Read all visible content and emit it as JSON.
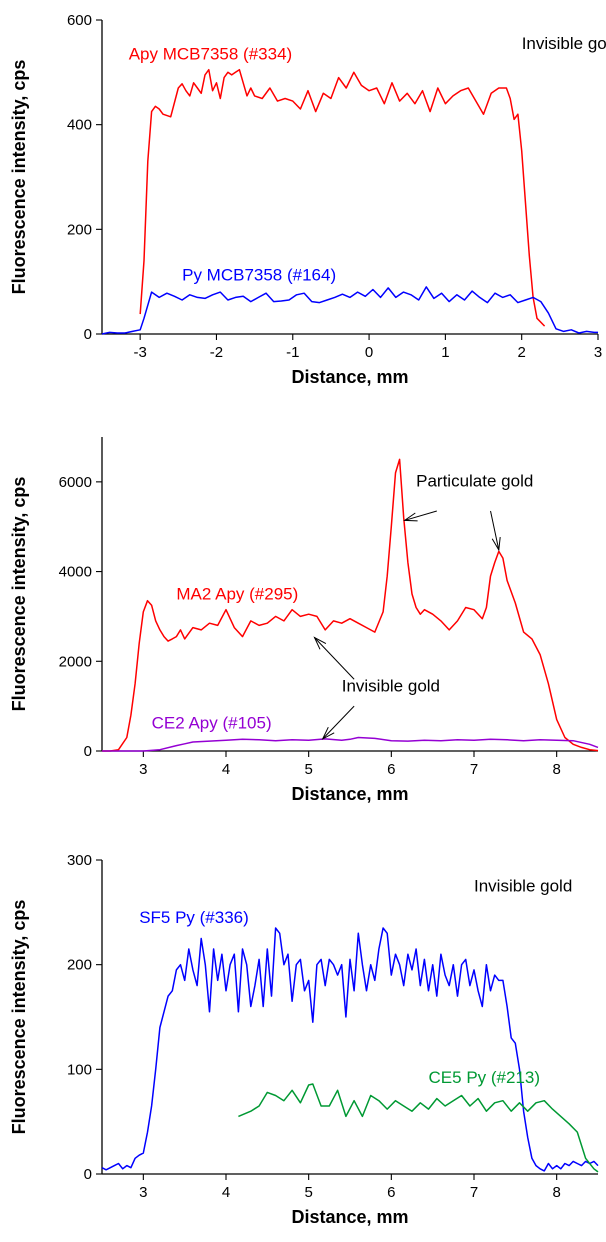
{
  "chart_data": [
    {
      "type": "line",
      "xlabel": "Distance, mm",
      "ylabel": "Fluorescence intensity, cps",
      "xlim": [
        -3.5,
        3
      ],
      "ylim": [
        0,
        600
      ],
      "xticks": [
        -3,
        -2,
        -1,
        0,
        1,
        2,
        3
      ],
      "yticks": [
        0,
        200,
        400,
        600
      ],
      "grid": false,
      "annotations": [
        {
          "text": "Invisible gold",
          "x": 2.0,
          "y": 545,
          "color": "#000000",
          "anchor": "start"
        }
      ],
      "series": [
        {
          "name": "Apy MCB7358 (#334)",
          "color": "#ff0000",
          "label_pos": {
            "x": -3.15,
            "y": 525
          },
          "x": [
            -3.0,
            -2.95,
            -2.9,
            -2.85,
            -2.8,
            -2.75,
            -2.7,
            -2.6,
            -2.5,
            -2.45,
            -2.4,
            -2.35,
            -2.3,
            -2.25,
            -2.2,
            -2.15,
            -2.1,
            -2.05,
            -2.0,
            -1.95,
            -1.9,
            -1.85,
            -1.8,
            -1.75,
            -1.7,
            -1.65,
            -1.6,
            -1.55,
            -1.5,
            -1.4,
            -1.3,
            -1.2,
            -1.1,
            -1.0,
            -0.9,
            -0.8,
            -0.7,
            -0.6,
            -0.5,
            -0.4,
            -0.3,
            -0.2,
            -0.1,
            0.0,
            0.1,
            0.2,
            0.3,
            0.4,
            0.5,
            0.6,
            0.7,
            0.8,
            0.9,
            1.0,
            1.1,
            1.2,
            1.3,
            1.4,
            1.5,
            1.6,
            1.7,
            1.8,
            1.85,
            1.9,
            1.95,
            2.0,
            2.05,
            2.1,
            2.15,
            2.2,
            2.3
          ],
          "y": [
            38,
            140,
            330,
            425,
            435,
            430,
            420,
            415,
            470,
            478,
            465,
            455,
            480,
            470,
            460,
            495,
            505,
            465,
            480,
            450,
            490,
            500,
            495,
            500,
            505,
            480,
            455,
            470,
            455,
            450,
            470,
            445,
            450,
            445,
            430,
            465,
            425,
            460,
            450,
            490,
            470,
            500,
            475,
            465,
            470,
            440,
            480,
            445,
            460,
            440,
            465,
            425,
            470,
            440,
            455,
            465,
            470,
            445,
            420,
            460,
            470,
            470,
            450,
            410,
            420,
            350,
            250,
            150,
            70,
            30,
            15
          ]
        },
        {
          "name": "Py MCB7358 (#164)",
          "color": "#0000ff",
          "label_pos": {
            "x": -2.45,
            "y": 102
          },
          "x": [
            -3.5,
            -3.4,
            -3.3,
            -3.2,
            -3.1,
            -3.0,
            -2.95,
            -2.85,
            -2.75,
            -2.65,
            -2.55,
            -2.45,
            -2.35,
            -2.25,
            -2.15,
            -2.05,
            -1.95,
            -1.85,
            -1.75,
            -1.65,
            -1.55,
            -1.45,
            -1.35,
            -1.25,
            -1.15,
            -1.05,
            -0.95,
            -0.85,
            -0.75,
            -0.65,
            -0.55,
            -0.45,
            -0.35,
            -0.25,
            -0.15,
            -0.05,
            0.05,
            0.15,
            0.25,
            0.35,
            0.45,
            0.55,
            0.65,
            0.75,
            0.85,
            0.95,
            1.05,
            1.15,
            1.25,
            1.35,
            1.45,
            1.55,
            1.65,
            1.75,
            1.85,
            1.95,
            2.05,
            2.15,
            2.25,
            2.35,
            2.45,
            2.55,
            2.65,
            2.75,
            2.85,
            2.95,
            3.0
          ],
          "y": [
            0,
            3,
            2,
            2,
            5,
            8,
            30,
            80,
            70,
            78,
            72,
            65,
            75,
            70,
            68,
            75,
            80,
            65,
            70,
            72,
            62,
            70,
            78,
            62,
            63,
            65,
            75,
            78,
            62,
            60,
            65,
            70,
            76,
            70,
            80,
            72,
            85,
            70,
            88,
            70,
            80,
            75,
            65,
            90,
            68,
            78,
            62,
            75,
            65,
            82,
            70,
            60,
            78,
            70,
            75,
            60,
            65,
            70,
            62,
            40,
            10,
            5,
            8,
            2,
            5,
            3,
            3
          ]
        }
      ]
    },
    {
      "type": "line",
      "xlabel": "Distance, mm",
      "ylabel": "Fluorescence intensity, cps",
      "xlim": [
        2.5,
        8.5
      ],
      "ylim": [
        0,
        7000
      ],
      "xticks": [
        3,
        4,
        5,
        6,
        7,
        8
      ],
      "yticks": [
        0,
        2000,
        4000,
        6000
      ],
      "grid": false,
      "annotations": [
        {
          "text": "Particulate gold",
          "x": 6.3,
          "y": 5900,
          "color": "#000000",
          "anchor": "start"
        },
        {
          "text": "Invisible gold",
          "x": 5.4,
          "y": 1330,
          "color": "#000000",
          "anchor": "start"
        }
      ],
      "arrows": [
        {
          "from": [
            6.55,
            5350
          ],
          "to": [
            6.16,
            5140
          ]
        },
        {
          "from": [
            7.2,
            5350
          ],
          "to": [
            7.3,
            4480
          ]
        },
        {
          "from": [
            5.55,
            1600
          ],
          "to": [
            5.07,
            2530
          ]
        },
        {
          "from": [
            5.55,
            1000
          ],
          "to": [
            5.17,
            270
          ]
        }
      ],
      "series": [
        {
          "name": "MA2 Apy (#295)",
          "color": "#ff0000",
          "label_pos": {
            "x": 3.4,
            "y": 3380
          },
          "x": [
            2.5,
            2.6,
            2.7,
            2.8,
            2.85,
            2.9,
            2.95,
            3.0,
            3.05,
            3.1,
            3.15,
            3.2,
            3.25,
            3.3,
            3.35,
            3.4,
            3.45,
            3.5,
            3.6,
            3.7,
            3.8,
            3.9,
            4.0,
            4.1,
            4.2,
            4.3,
            4.4,
            4.5,
            4.6,
            4.7,
            4.8,
            4.9,
            5.0,
            5.1,
            5.2,
            5.3,
            5.4,
            5.5,
            5.6,
            5.7,
            5.8,
            5.9,
            5.95,
            6.0,
            6.05,
            6.1,
            6.15,
            6.2,
            6.25,
            6.3,
            6.35,
            6.4,
            6.5,
            6.6,
            6.7,
            6.8,
            6.9,
            7.0,
            7.1,
            7.15,
            7.2,
            7.25,
            7.3,
            7.35,
            7.4,
            7.5,
            7.6,
            7.7,
            7.8,
            7.9,
            8.0,
            8.1,
            8.2,
            8.3,
            8.4,
            8.5
          ],
          "y": [
            0,
            0,
            30,
            300,
            800,
            1500,
            2400,
            3100,
            3350,
            3250,
            2900,
            2700,
            2550,
            2450,
            2500,
            2550,
            2700,
            2500,
            2750,
            2700,
            2850,
            2800,
            3150,
            2750,
            2550,
            2900,
            2800,
            2850,
            3000,
            2900,
            3150,
            3000,
            3050,
            3000,
            2700,
            2900,
            2850,
            2950,
            2850,
            2750,
            2650,
            3100,
            3900,
            5000,
            6200,
            6500,
            5200,
            4200,
            3500,
            3200,
            3050,
            3150,
            3050,
            2900,
            2700,
            2900,
            3200,
            3150,
            2950,
            3200,
            3900,
            4200,
            4450,
            4300,
            3800,
            3300,
            2650,
            2500,
            2150,
            1500,
            700,
            300,
            150,
            80,
            30,
            10
          ]
        },
        {
          "name": "CE2 Apy (#105)",
          "color": "#9400d3",
          "label_pos": {
            "x": 3.1,
            "y": 500
          },
          "x": [
            2.5,
            3.0,
            3.2,
            3.4,
            3.5,
            3.6,
            3.8,
            4.0,
            4.2,
            4.4,
            4.6,
            4.8,
            5.0,
            5.2,
            5.4,
            5.5,
            5.6,
            5.8,
            6.0,
            6.2,
            6.4,
            6.6,
            6.8,
            7.0,
            7.2,
            7.4,
            7.6,
            7.8,
            8.0,
            8.2,
            8.4,
            8.5
          ],
          "y": [
            0,
            0,
            30,
            120,
            160,
            200,
            220,
            240,
            260,
            250,
            230,
            250,
            240,
            270,
            240,
            260,
            300,
            280,
            230,
            220,
            240,
            230,
            250,
            240,
            260,
            250,
            230,
            250,
            240,
            230,
            150,
            80
          ]
        }
      ]
    },
    {
      "type": "line",
      "xlabel": "Distance, mm",
      "ylabel": "Fluorescence intensity, cps",
      "xlim": [
        2.5,
        8.5
      ],
      "ylim": [
        0,
        300
      ],
      "xticks": [
        3,
        4,
        5,
        6,
        7,
        8
      ],
      "yticks": [
        0,
        100,
        200,
        300
      ],
      "grid": false,
      "annotations": [
        {
          "text": "Invisible gold",
          "x": 7.0,
          "y": 270,
          "color": "#000000",
          "anchor": "start"
        }
      ],
      "series": [
        {
          "name": "SF5 Py (#336)",
          "color": "#0000ff",
          "label_pos": {
            "x": 2.95,
            "y": 240
          },
          "x": [
            2.5,
            2.55,
            2.6,
            2.65,
            2.7,
            2.75,
            2.8,
            2.85,
            2.9,
            2.95,
            3.0,
            3.05,
            3.1,
            3.15,
            3.2,
            3.25,
            3.3,
            3.35,
            3.4,
            3.45,
            3.5,
            3.55,
            3.6,
            3.65,
            3.7,
            3.75,
            3.8,
            3.85,
            3.9,
            3.95,
            4.0,
            4.05,
            4.1,
            4.15,
            4.2,
            4.25,
            4.3,
            4.35,
            4.4,
            4.45,
            4.5,
            4.55,
            4.6,
            4.65,
            4.7,
            4.75,
            4.8,
            4.85,
            4.9,
            4.95,
            5.0,
            5.05,
            5.1,
            5.15,
            5.2,
            5.25,
            5.3,
            5.35,
            5.4,
            5.45,
            5.5,
            5.55,
            5.6,
            5.65,
            5.7,
            5.75,
            5.8,
            5.85,
            5.9,
            5.95,
            6.0,
            6.05,
            6.1,
            6.15,
            6.2,
            6.25,
            6.3,
            6.35,
            6.4,
            6.45,
            6.5,
            6.55,
            6.6,
            6.65,
            6.7,
            6.75,
            6.8,
            6.85,
            6.9,
            6.95,
            7.0,
            7.05,
            7.1,
            7.15,
            7.2,
            7.25,
            7.3,
            7.35,
            7.4,
            7.45,
            7.5,
            7.55,
            7.6,
            7.65,
            7.7,
            7.75,
            7.8,
            7.85,
            7.9,
            7.95,
            8.0,
            8.05,
            8.1,
            8.15,
            8.2,
            8.25,
            8.3,
            8.35,
            8.4,
            8.45,
            8.5
          ],
          "y": [
            6,
            4,
            6,
            8,
            10,
            5,
            8,
            6,
            15,
            18,
            20,
            40,
            65,
            100,
            140,
            155,
            170,
            175,
            195,
            200,
            185,
            215,
            195,
            180,
            225,
            200,
            155,
            215,
            185,
            210,
            175,
            200,
            210,
            155,
            215,
            200,
            160,
            180,
            205,
            160,
            215,
            170,
            235,
            230,
            200,
            210,
            165,
            200,
            205,
            175,
            185,
            145,
            200,
            205,
            180,
            205,
            200,
            190,
            200,
            150,
            205,
            175,
            230,
            200,
            175,
            200,
            185,
            215,
            235,
            230,
            190,
            210,
            200,
            180,
            210,
            195,
            215,
            180,
            205,
            175,
            200,
            170,
            210,
            190,
            180,
            200,
            170,
            200,
            205,
            180,
            195,
            175,
            160,
            200,
            175,
            190,
            185,
            185,
            160,
            130,
            125,
            100,
            60,
            35,
            15,
            8,
            5,
            3,
            10,
            5,
            8,
            5,
            10,
            8,
            12,
            10,
            8,
            12,
            10,
            12,
            8
          ]
        },
        {
          "name": "CE5 Py (#213)",
          "color": "#009933",
          "label_pos": {
            "x": 6.45,
            "y": 87
          },
          "x": [
            4.15,
            4.3,
            4.4,
            4.5,
            4.6,
            4.7,
            4.8,
            4.9,
            5.0,
            5.05,
            5.15,
            5.25,
            5.35,
            5.45,
            5.55,
            5.65,
            5.75,
            5.85,
            5.95,
            6.05,
            6.15,
            6.25,
            6.35,
            6.45,
            6.55,
            6.65,
            6.75,
            6.85,
            6.95,
            7.05,
            7.15,
            7.25,
            7.35,
            7.45,
            7.55,
            7.65,
            7.75,
            7.85,
            7.95,
            8.05,
            8.15,
            8.25,
            8.35,
            8.45,
            8.5
          ],
          "y": [
            55,
            60,
            65,
            78,
            75,
            70,
            80,
            68,
            85,
            86,
            65,
            65,
            80,
            55,
            70,
            55,
            75,
            70,
            62,
            70,
            65,
            60,
            68,
            62,
            72,
            65,
            70,
            75,
            65,
            72,
            60,
            68,
            70,
            60,
            68,
            60,
            68,
            70,
            62,
            55,
            48,
            40,
            15,
            5,
            2
          ]
        }
      ]
    }
  ]
}
